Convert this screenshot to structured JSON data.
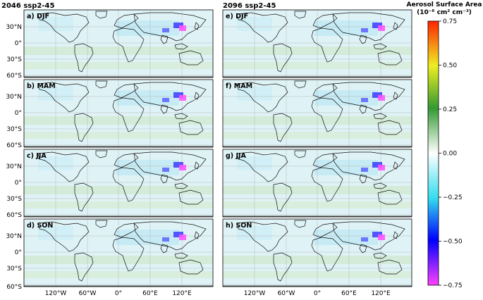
{
  "columns": [
    {
      "title": "2046 ssp2-45",
      "panels": [
        {
          "label": "a) DJF"
        },
        {
          "label": "b) MAM"
        },
        {
          "label": "c) JJA"
        },
        {
          "label": "d) SON"
        }
      ]
    },
    {
      "title": "2096 ssp2-45",
      "panels": [
        {
          "label": "e) DJF"
        },
        {
          "label": "f) MAM"
        },
        {
          "label": "g) JJA"
        },
        {
          "label": "h) SON"
        }
      ]
    }
  ],
  "lat_ticks": [
    "30°N",
    "0°",
    "30°S",
    "60°S"
  ],
  "lon_ticks": [
    "120°W",
    "60°W",
    "0°",
    "60°E",
    "120°E"
  ],
  "colorbar": {
    "title_line1": "Aerosol Surface Area",
    "title_line2": "(10⁻⁶ cm² cm⁻³)",
    "ticks": [
      "0.75",
      "0.50",
      "0.25",
      "0.00",
      "−0.25",
      "−0.50",
      "−0.75"
    ],
    "range": [
      -0.75,
      0.75
    ],
    "colors": [
      "#ff40ff",
      "#0000ff",
      "#33ddee",
      "#ffffff",
      "#339933",
      "#eeee22",
      "#ff2200"
    ]
  }
}
